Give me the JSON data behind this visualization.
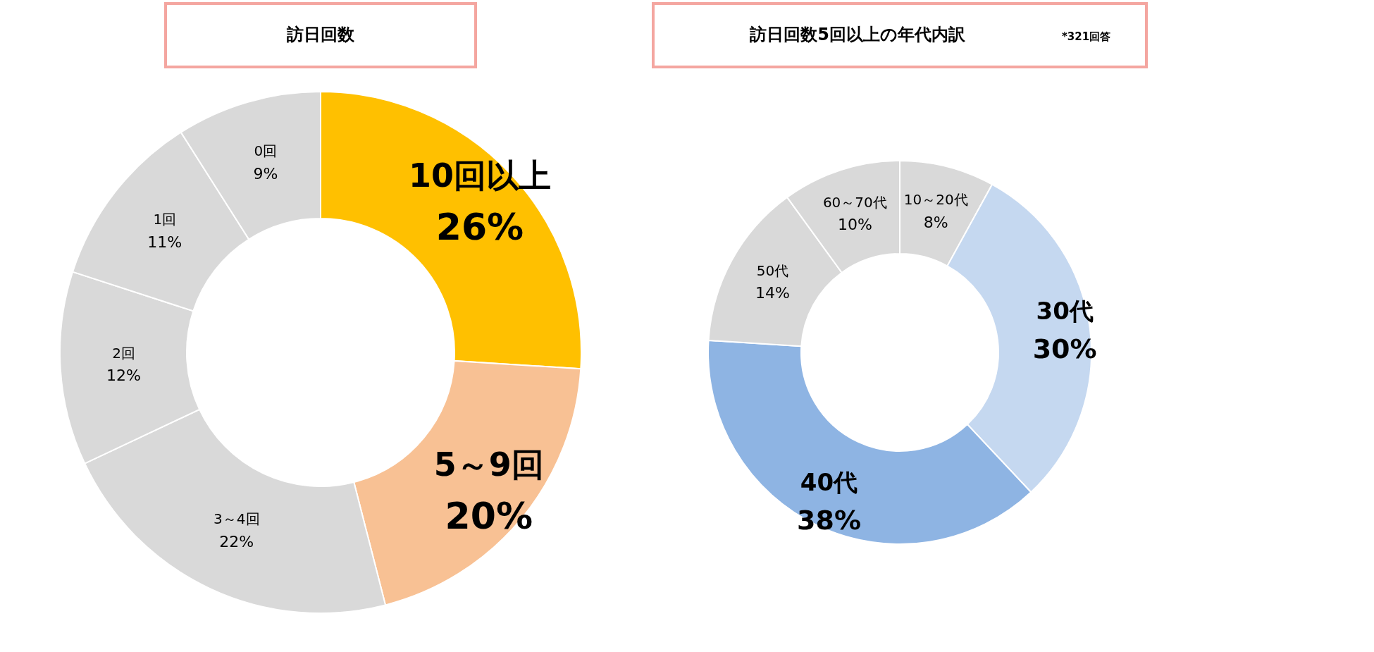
{
  "chart_data": [
    {
      "type": "donut",
      "title": "訪日回数",
      "categories": [
        "10回以上",
        "5～9回",
        "3～4回",
        "2回",
        "1回",
        "0回"
      ],
      "values": [
        26,
        20,
        22,
        12,
        11,
        9
      ],
      "colors": [
        "#ffc000",
        "#f8c194",
        "#d9d9d9",
        "#d9d9d9",
        "#d9d9d9",
        "#d9d9d9"
      ],
      "value_labels": [
        "26%",
        "20%",
        "22%",
        "12%",
        "11%",
        "9%"
      ],
      "legend": false
    },
    {
      "type": "donut",
      "title": "訪日回数5回以上の年代内訳",
      "annotations": [
        "*321回答"
      ],
      "categories": [
        "10～20代",
        "30代",
        "40代",
        "50代",
        "60～70代"
      ],
      "values": [
        8,
        30,
        38,
        14,
        10
      ],
      "colors": [
        "#d9d9d9",
        "#c5d8f0",
        "#8eb4e3",
        "#d9d9d9",
        "#d9d9d9"
      ],
      "value_labels": [
        "8%",
        "30%",
        "38%",
        "14%",
        "10%"
      ],
      "legend": false
    }
  ]
}
